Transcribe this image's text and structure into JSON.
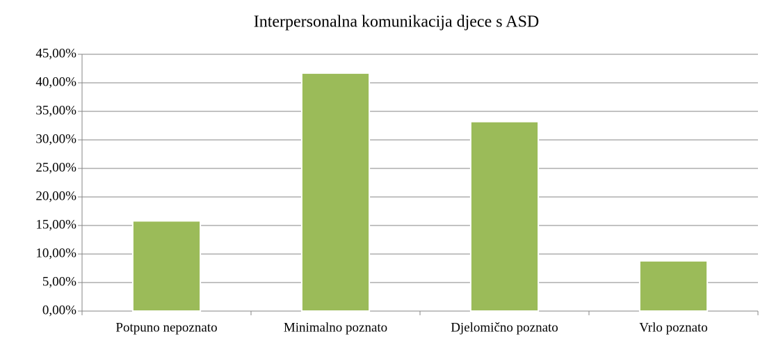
{
  "chart_data": {
    "type": "bar",
    "title": "Interpersonalna komunikacija djece s ASD",
    "categories": [
      "Potpuno nepoznato",
      "Minimalno poznato",
      "Djelomično poznato",
      "Vrlo poznato"
    ],
    "values": [
      15.8,
      41.7,
      33.2,
      8.8
    ],
    "color": "#9bbb59",
    "ylim": [
      0,
      45
    ],
    "yticks": [
      {
        "value": 0,
        "label": "0,00%"
      },
      {
        "value": 5,
        "label": "5,00%"
      },
      {
        "value": 10,
        "label": "10,00%"
      },
      {
        "value": 15,
        "label": "15,00%"
      },
      {
        "value": 20,
        "label": "20,00%"
      },
      {
        "value": 25,
        "label": "25,00%"
      },
      {
        "value": 30,
        "label": "30,00%"
      },
      {
        "value": 35,
        "label": "35,00%"
      },
      {
        "value": 40,
        "label": "40,00%"
      },
      {
        "value": 45,
        "label": "45,00%"
      }
    ],
    "grid": true
  }
}
